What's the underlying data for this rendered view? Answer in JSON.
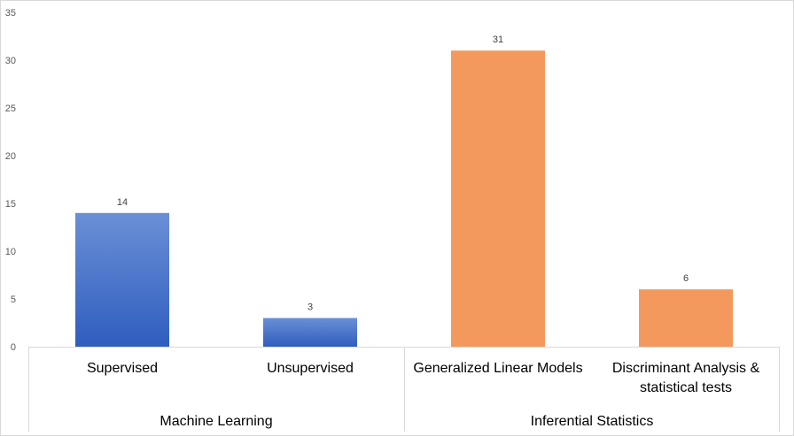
{
  "chart_data": {
    "type": "bar",
    "categories": [
      {
        "label": [
          "Supervised"
        ],
        "group": "Machine Learning",
        "value": 14,
        "color": "#4472C4"
      },
      {
        "label": [
          "Unsupervised"
        ],
        "group": "Machine Learning",
        "value": 3,
        "color": "#4472C4"
      },
      {
        "label": [
          "Generalized Linear Models"
        ],
        "group": "Inferential Statistics",
        "value": 31,
        "color": "#F4995E"
      },
      {
        "label": [
          "Discriminant Analysis &",
          "statistical tests"
        ],
        "group": "Inferential Statistics",
        "value": 6,
        "color": "#F4995E"
      }
    ],
    "groups": [
      "Machine Learning",
      "Inferential Statistics"
    ],
    "values": [
      14,
      3,
      31,
      6
    ],
    "yticks": [
      "0",
      "5",
      "10",
      "15",
      "20",
      "25",
      "30",
      "35"
    ],
    "ylim": [
      0,
      35
    ],
    "grid": false,
    "legend": "none"
  }
}
